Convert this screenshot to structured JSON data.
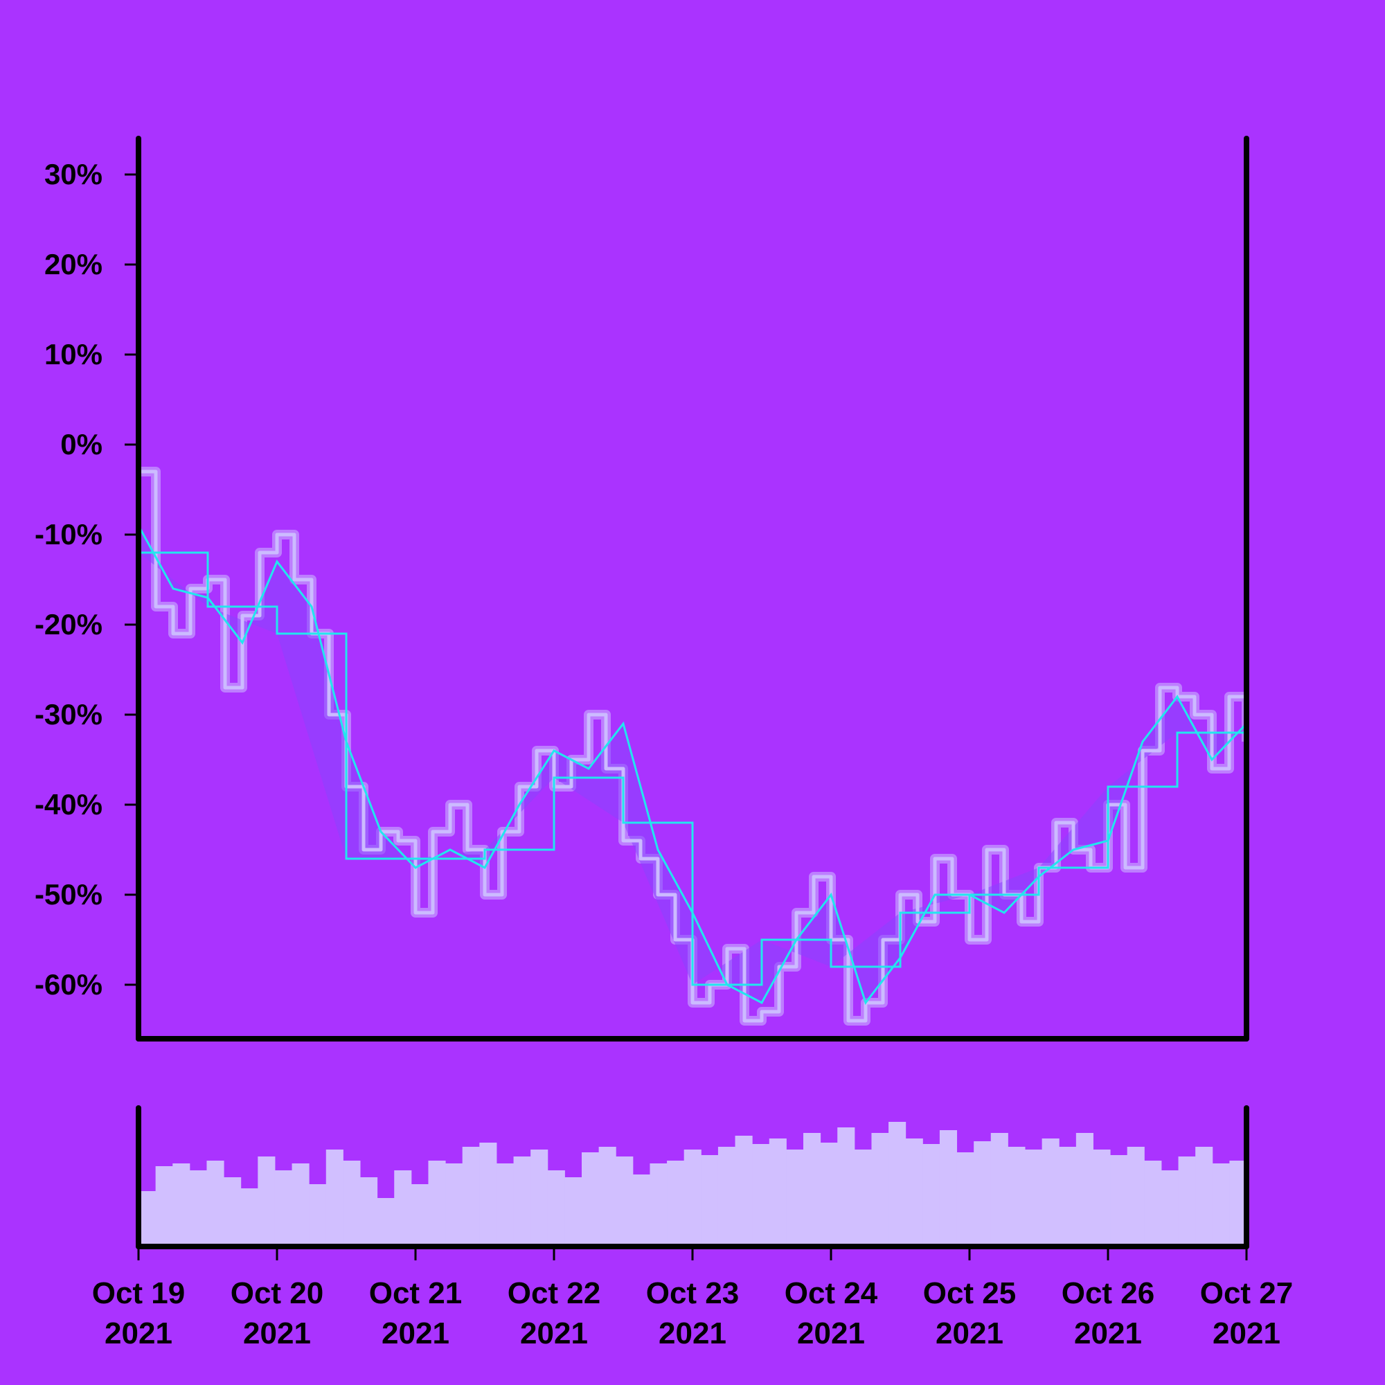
{
  "colors": {
    "background": "#aa33ff",
    "axis": "#000000",
    "price_line": "#ccbbff",
    "price_band": "#ccbbff",
    "volume_bars": "#d1bfff",
    "ma_lines": "#22e6ee",
    "ma_fill": "#8844ff"
  },
  "chart_data": [
    {
      "type": "line",
      "panel": "price",
      "title": "",
      "xlabel": "",
      "ylabel": "",
      "x_ticks": [
        {
          "date": "2021-10-19",
          "line1": "Oct 19",
          "line2": "2021"
        },
        {
          "date": "2021-10-20",
          "line1": "Oct 20",
          "line2": "2021"
        },
        {
          "date": "2021-10-21",
          "line1": "Oct 21",
          "line2": "2021"
        },
        {
          "date": "2021-10-22",
          "line1": "Oct 22",
          "line2": "2021"
        },
        {
          "date": "2021-10-23",
          "line1": "Oct 23",
          "line2": "2021"
        },
        {
          "date": "2021-10-24",
          "line1": "Oct 24",
          "line2": "2021"
        },
        {
          "date": "2021-10-25",
          "line1": "Oct 25",
          "line2": "2021"
        },
        {
          "date": "2021-10-26",
          "line1": "Oct 26",
          "line2": "2021"
        },
        {
          "date": "2021-10-27",
          "line1": "Oct 27",
          "line2": "2021"
        }
      ],
      "y_ticks": [
        {
          "value": 30,
          "label": "30%"
        },
        {
          "value": 20,
          "label": "20%"
        },
        {
          "value": 10,
          "label": "10%"
        },
        {
          "value": 0,
          "label": "0%"
        },
        {
          "value": -10,
          "label": "-10%"
        },
        {
          "value": -20,
          "label": "-20%"
        },
        {
          "value": -30,
          "label": "-30%"
        },
        {
          "value": -40,
          "label": "-40%"
        },
        {
          "value": -50,
          "label": "-50%"
        },
        {
          "value": -60,
          "label": "-60%"
        }
      ],
      "xlim": [
        "2021-10-19",
        "2021-10-27"
      ],
      "ylim": [
        -66,
        34
      ],
      "grid": false,
      "legend": "none",
      "series": [
        {
          "role": "price",
          "style": "thick light line with lighter band",
          "x": [
            "2021-10-19 00:00",
            "2021-10-19 03:00",
            "2021-10-19 06:00",
            "2021-10-19 09:00",
            "2021-10-19 12:00",
            "2021-10-19 15:00",
            "2021-10-19 18:00",
            "2021-10-19 21:00",
            "2021-10-20 00:00",
            "2021-10-20 03:00",
            "2021-10-20 06:00",
            "2021-10-20 09:00",
            "2021-10-20 12:00",
            "2021-10-20 15:00",
            "2021-10-20 18:00",
            "2021-10-20 21:00",
            "2021-10-21 00:00",
            "2021-10-21 03:00",
            "2021-10-21 06:00",
            "2021-10-21 09:00",
            "2021-10-21 12:00",
            "2021-10-21 15:00",
            "2021-10-21 18:00",
            "2021-10-21 21:00",
            "2021-10-22 00:00",
            "2021-10-22 03:00",
            "2021-10-22 06:00",
            "2021-10-22 09:00",
            "2021-10-22 12:00",
            "2021-10-22 15:00",
            "2021-10-22 18:00",
            "2021-10-22 21:00",
            "2021-10-23 00:00",
            "2021-10-23 03:00",
            "2021-10-23 06:00",
            "2021-10-23 09:00",
            "2021-10-23 12:00",
            "2021-10-23 15:00",
            "2021-10-23 18:00",
            "2021-10-23 21:00",
            "2021-10-24 00:00",
            "2021-10-24 03:00",
            "2021-10-24 06:00",
            "2021-10-24 09:00",
            "2021-10-24 12:00",
            "2021-10-24 15:00",
            "2021-10-24 18:00",
            "2021-10-24 21:00",
            "2021-10-25 00:00",
            "2021-10-25 03:00",
            "2021-10-25 06:00",
            "2021-10-25 09:00",
            "2021-10-25 12:00",
            "2021-10-25 15:00",
            "2021-10-25 18:00",
            "2021-10-25 21:00",
            "2021-10-26 00:00",
            "2021-10-26 03:00",
            "2021-10-26 06:00",
            "2021-10-26 09:00",
            "2021-10-26 12:00",
            "2021-10-26 15:00",
            "2021-10-26 18:00",
            "2021-10-26 21:00",
            "2021-10-27 00:00"
          ],
          "values": [
            -3,
            -18,
            -21,
            -16,
            -15,
            -27,
            -19,
            -12,
            -10,
            -15,
            -21,
            -30,
            -38,
            -45,
            -43,
            -44,
            -52,
            -43,
            -40,
            -45,
            -50,
            -43,
            -38,
            -34,
            -38,
            -35,
            -30,
            -36,
            -44,
            -46,
            -50,
            -55,
            -62,
            -60,
            -56,
            -64,
            -63,
            -58,
            -52,
            -48,
            -55,
            -64,
            -62,
            -55,
            -50,
            -53,
            -46,
            -50,
            -55,
            -45,
            -50,
            -53,
            -47,
            -42,
            -45,
            -47,
            -40,
            -47,
            -34,
            -27,
            -28,
            -30,
            -36,
            -28,
            -33
          ]
        },
        {
          "role": "moving-average-fast",
          "x": [
            "2021-10-19 00:00",
            "2021-10-19 06:00",
            "2021-10-19 12:00",
            "2021-10-19 18:00",
            "2021-10-20 00:00",
            "2021-10-20 06:00",
            "2021-10-20 12:00",
            "2021-10-20 18:00",
            "2021-10-21 00:00",
            "2021-10-21 06:00",
            "2021-10-21 12:00",
            "2021-10-21 18:00",
            "2021-10-22 00:00",
            "2021-10-22 06:00",
            "2021-10-22 12:00",
            "2021-10-22 18:00",
            "2021-10-23 00:00",
            "2021-10-23 06:00",
            "2021-10-23 12:00",
            "2021-10-23 18:00",
            "2021-10-24 00:00",
            "2021-10-24 06:00",
            "2021-10-24 12:00",
            "2021-10-24 18:00",
            "2021-10-25 00:00",
            "2021-10-25 06:00",
            "2021-10-25 12:00",
            "2021-10-25 18:00",
            "2021-10-26 00:00",
            "2021-10-26 06:00",
            "2021-10-26 12:00",
            "2021-10-26 18:00",
            "2021-10-27 00:00"
          ],
          "values": [
            -9,
            -16,
            -17,
            -22,
            -13,
            -18,
            -33,
            -43,
            -47,
            -45,
            -47,
            -40,
            -34,
            -36,
            -31,
            -45,
            -52,
            -60,
            -62,
            -55,
            -50,
            -62,
            -57,
            -50,
            -50,
            -52,
            -48,
            -45,
            -44,
            -33,
            -28,
            -35,
            -31
          ]
        },
        {
          "role": "moving-average-slow",
          "x": [
            "2021-10-19 00:00",
            "2021-10-19 12:00",
            "2021-10-20 00:00",
            "2021-10-20 12:00",
            "2021-10-21 00:00",
            "2021-10-21 12:00",
            "2021-10-22 00:00",
            "2021-10-22 12:00",
            "2021-10-23 00:00",
            "2021-10-23 12:00",
            "2021-10-24 00:00",
            "2021-10-24 12:00",
            "2021-10-25 00:00",
            "2021-10-25 12:00",
            "2021-10-26 00:00",
            "2021-10-26 12:00",
            "2021-10-27 00:00"
          ],
          "values": [
            -12,
            -18,
            -21,
            -46,
            -46,
            -45,
            -37,
            -42,
            -60,
            -55,
            -58,
            -52,
            -50,
            -47,
            -38,
            -32,
            -32
          ]
        }
      ]
    },
    {
      "type": "bar",
      "panel": "volume",
      "title": "",
      "ylabel": "",
      "series": [
        {
          "role": "volume",
          "start": "2021-10-19 00:00",
          "end": "2021-10-27 00:00",
          "values": [
            0.4,
            0.58,
            0.6,
            0.55,
            0.62,
            0.5,
            0.42,
            0.65,
            0.55,
            0.6,
            0.45,
            0.7,
            0.62,
            0.5,
            0.35,
            0.55,
            0.45,
            0.62,
            0.6,
            0.72,
            0.75,
            0.6,
            0.65,
            0.7,
            0.55,
            0.5,
            0.68,
            0.72,
            0.65,
            0.52,
            0.6,
            0.62,
            0.7,
            0.66,
            0.72,
            0.8,
            0.74,
            0.78,
            0.7,
            0.82,
            0.75,
            0.86,
            0.7,
            0.82,
            0.9,
            0.78,
            0.74,
            0.84,
            0.68,
            0.76,
            0.82,
            0.72,
            0.7,
            0.78,
            0.72,
            0.82,
            0.7,
            0.66,
            0.72,
            0.62,
            0.55,
            0.65,
            0.72,
            0.6,
            0.62
          ]
        }
      ]
    }
  ]
}
